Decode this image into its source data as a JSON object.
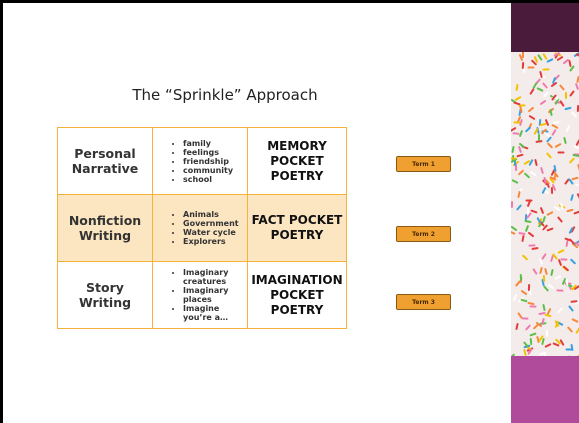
{
  "title": "The “Sprinkle” Approach",
  "table": {
    "rows": [
      {
        "genre": "Personal Narrative",
        "topics": [
          "family",
          "feelings",
          "friendship",
          "community",
          "school"
        ],
        "poetry": "MEMORY POCKET POETRY"
      },
      {
        "genre": "Nonfiction Writing",
        "topics": [
          "Animals",
          "Government",
          "Water cycle",
          "Explorers"
        ],
        "poetry": "FACT POCKET POETRY"
      },
      {
        "genre": "Story Writing",
        "topics": [
          "Imaginary creatures",
          "Imaginary places",
          "Imagine you’re a…"
        ],
        "poetry": "IMAGINATION POCKET POETRY"
      }
    ]
  },
  "buttons": [
    "Term 1",
    "Term 2",
    "Term 3"
  ]
}
